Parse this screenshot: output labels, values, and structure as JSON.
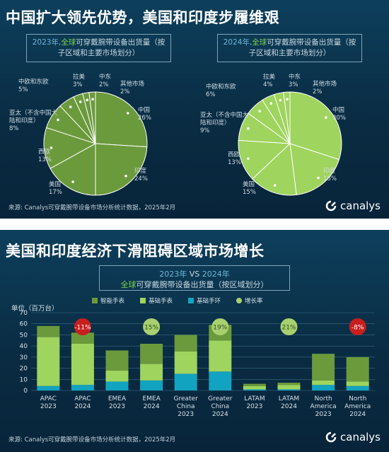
{
  "panel1": {
    "title": "中国扩大领先优势，美国和印度步履维艰",
    "source": "来源: Canalys可穿戴腕带设备市场分析统计数据，2025年2月",
    "logo": "canalys",
    "charts": [
      {
        "year": "2023年,",
        "global": "全球",
        "rest": "可穿戴腕带设备出货量（按子区域和主要市场划分）"
      },
      {
        "year": "2024年,",
        "global": "全球",
        "rest": "可穿戴腕带设备出货量（按子区域和主要市场划分）"
      }
    ]
  },
  "panel2": {
    "title": "美国和印度经济下滑阻碍区域市场增长",
    "sub_y1": "2023年",
    "sub_vs": " VS ",
    "sub_y2": "2024年",
    "sub_global": "全球",
    "sub_rest": "可穿戴腕带设备出货量（按区域划分）",
    "unit": "单位（百万台）",
    "source": "来源: Canalys可穿戴腕带设备市场分析统计数据，2025年2月",
    "logo": "canalys"
  },
  "colors": {
    "smartwatch": "#6b9a3c",
    "basic_watch": "#9fd45e",
    "basic_band": "#12a3c0",
    "growth_pos": "#a9d06f",
    "growth_neg": "#c81e1e",
    "pie_2023": "#6b9a3c",
    "pie_2024": "#9fd45e"
  },
  "chart_data": [
    {
      "type": "pie",
      "title": "2023年, 全球可穿戴腕带设备出货量（按子区域和主要市场划分）",
      "labels": [
        "中国",
        "印度",
        "美国",
        "西欧",
        "亚太（不含中国大陆和印度）",
        "中欧和东欧",
        "拉美",
        "中东",
        "其他市场"
      ],
      "label_text": [
        "中国\n26%",
        "印度\n24%",
        "美国\n17%",
        "西欧\n13%",
        "亚太（不含中国大\n陆和印度）\n8%",
        "中欧和东欧\n5%",
        "拉美\n3%",
        "中东\n2%",
        "其他市场\n2%"
      ],
      "values": [
        26,
        24,
        17,
        13,
        8,
        5,
        3,
        2,
        2
      ]
    },
    {
      "type": "pie",
      "title": "2024年, 全球可穿戴腕带设备出货量（按子区域和主要市场划分）",
      "labels": [
        "中国",
        "印度",
        "美国",
        "西欧",
        "亚太（不含中国大陆和印度）",
        "中欧和东欧",
        "拉美",
        "中东",
        "其他市场"
      ],
      "label_text": [
        "中国\n30%",
        "印度\n18%",
        "美国\n15%",
        "西欧\n13%",
        "亚太（不含中国大\n陆和印度）\n9%",
        "中欧和东欧\n6%",
        "拉美\n4%",
        "中东\n3%",
        "其他市场\n2%"
      ],
      "values": [
        30,
        18,
        15,
        13,
        9,
        6,
        4,
        3,
        2
      ]
    },
    {
      "type": "bar",
      "stacked": true,
      "title": "2023年 VS 2024年 全球可穿戴腕带设备出货量（按区域划分）",
      "ylabel": "单位（百万台）",
      "ylim": [
        0,
        70
      ],
      "yticks": [
        0,
        10,
        20,
        30,
        40,
        50,
        60,
        70
      ],
      "categories": [
        "APAC\n2023",
        "APAC\n2024",
        "EMEA\n2023",
        "EMEA\n2024",
        "Greater\nChina\n2023",
        "Greater\nChina\n2024",
        "LATAM\n2023",
        "LATAM\n2024",
        "North\nAmerica\n2023",
        "North\nAmerica\n2024"
      ],
      "series": [
        {
          "name": "基础手环",
          "values": [
            4,
            5,
            8,
            9,
            15,
            17,
            1,
            1,
            5,
            4
          ]
        },
        {
          "name": "基础手表",
          "values": [
            44,
            37,
            10,
            15,
            20,
            28,
            3,
            4,
            4,
            4
          ]
        },
        {
          "name": "智能手表",
          "values": [
            10,
            10,
            18,
            18,
            15,
            14,
            2,
            2,
            24,
            22
          ]
        }
      ],
      "growth_label": "增长率",
      "growth": [
        "-11%",
        "15%",
        "19%",
        "21%",
        "-8%"
      ],
      "legend_position": "top"
    }
  ]
}
